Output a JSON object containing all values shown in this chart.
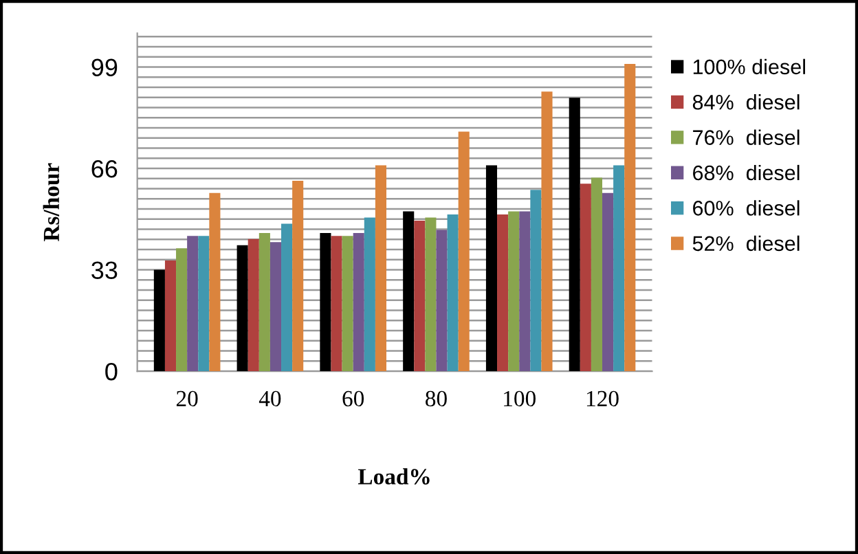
{
  "chart_data": {
    "type": "bar",
    "xlabel": "Load%",
    "ylabel": "Rs/hour",
    "categories": [
      "20",
      "40",
      "60",
      "80",
      "100",
      "120"
    ],
    "series": [
      {
        "name": "100% diesel",
        "color": "#000000",
        "values": [
          33,
          41,
          45,
          52,
          67,
          89
        ]
      },
      {
        "name": "84%  diesel",
        "color": "#b0413e",
        "values": [
          36,
          43,
          44,
          49,
          51,
          61
        ]
      },
      {
        "name": "76%  diesel",
        "color": "#89a54e",
        "values": [
          40,
          45,
          44,
          50,
          52,
          63
        ]
      },
      {
        "name": "68%  diesel",
        "color": "#71588f",
        "values": [
          44,
          42,
          45,
          46,
          52,
          58
        ]
      },
      {
        "name": "60%  diesel",
        "color": "#4198af",
        "values": [
          44,
          48,
          50,
          51,
          59,
          67
        ]
      },
      {
        "name": "52%  diesel",
        "color": "#db843d",
        "values": [
          58,
          62,
          67,
          78,
          91,
          100
        ]
      }
    ],
    "ylim": [
      0,
      110
    ],
    "yticks": [
      0,
      {
        "value": 3.3,
        "label": null
      },
      {
        "value": 6.6,
        "label": null
      },
      {
        "value": 9.9,
        "label": null
      },
      {
        "value": 13.2,
        "label": null
      },
      {
        "value": 16.5,
        "label": null
      },
      {
        "value": 19.8,
        "label": null
      },
      {
        "value": 23.1,
        "label": null
      },
      {
        "value": 26.4,
        "label": null
      },
      {
        "value": 29.7,
        "label": null
      },
      33,
      {
        "value": 36.3,
        "label": null
      },
      {
        "value": 39.6,
        "label": null
      },
      {
        "value": 42.9,
        "label": null
      },
      {
        "value": 46.2,
        "label": null
      },
      {
        "value": 49.5,
        "label": null
      },
      {
        "value": 52.8,
        "label": null
      },
      {
        "value": 56.1,
        "label": null
      },
      {
        "value": 59.4,
        "label": null
      },
      {
        "value": 62.7,
        "label": null
      },
      66,
      {
        "value": 69.3,
        "label": null
      },
      {
        "value": 72.6,
        "label": null
      },
      {
        "value": 75.9,
        "label": null
      },
      {
        "value": 79.2,
        "label": null
      },
      {
        "value": 82.5,
        "label": null
      },
      {
        "value": 85.8,
        "label": null
      },
      {
        "value": 89.1,
        "label": null
      },
      {
        "value": 92.4,
        "label": null
      },
      {
        "value": 95.7,
        "label": null
      },
      99,
      {
        "value": 102.3,
        "label": null
      },
      {
        "value": 105.6,
        "label": null
      },
      {
        "value": 108.9,
        "label": null
      }
    ],
    "grid": "y",
    "legend": "right"
  }
}
